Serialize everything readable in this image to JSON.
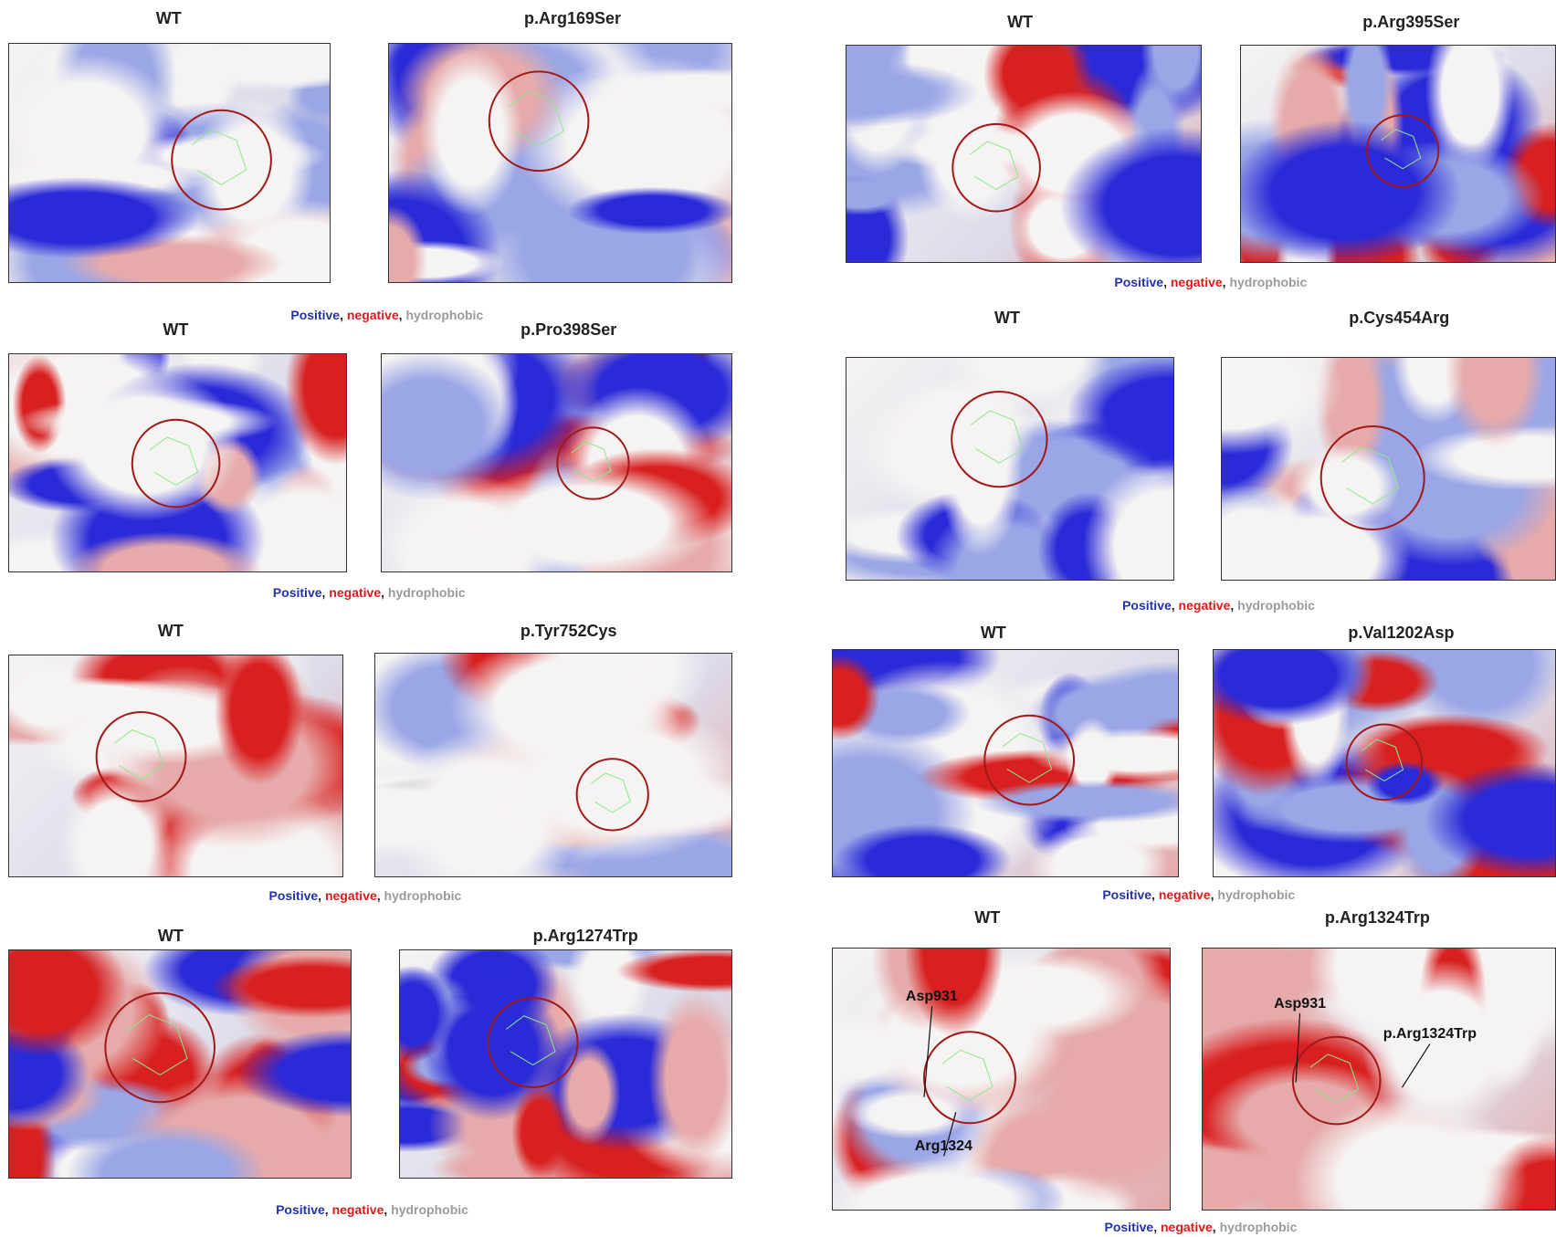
{
  "panels": [
    {
      "wt_label": "WT",
      "mutant_label": "p.Arg169Ser",
      "legend": [
        "Positive",
        "negative",
        "hydrophobic"
      ]
    },
    {
      "wt_label": "WT",
      "mutant_label": "p.Pro398Ser",
      "legend": [
        "Positive",
        "negative",
        "hydrophobic"
      ]
    },
    {
      "wt_label": "WT",
      "mutant_label": "p.Tyr752Cys",
      "legend": [
        "Positive",
        "negative",
        "hydrophobic"
      ]
    },
    {
      "wt_label": "WT",
      "mutant_label": "p.Arg1274Trp",
      "legend": [
        "Positive",
        "negative",
        "hydrophobic"
      ]
    },
    {
      "wt_label": "WT",
      "mutant_label": "p.Arg395Ser",
      "legend": [
        "Positive",
        "negative",
        "hydrophobic"
      ]
    },
    {
      "wt_label": "WT",
      "mutant_label": "p.Cys454Arg",
      "legend": [
        "Positive",
        "negative",
        "hydrophobic"
      ]
    },
    {
      "wt_label": "WT",
      "mutant_label": "p.Val1202Asp",
      "legend": [
        "Positive",
        "negative",
        "hydrophobic"
      ]
    },
    {
      "wt_label": "WT",
      "mutant_label": "p.Arg1324Trp",
      "legend": [
        "Positive",
        "negative",
        "hydrophobic"
      ],
      "wt_annotations": [
        "Asp931",
        "Arg1324"
      ],
      "mutant_annotations": [
        "Asp931",
        "p.Arg1324Trp"
      ]
    }
  ],
  "legend_separator": ","
}
